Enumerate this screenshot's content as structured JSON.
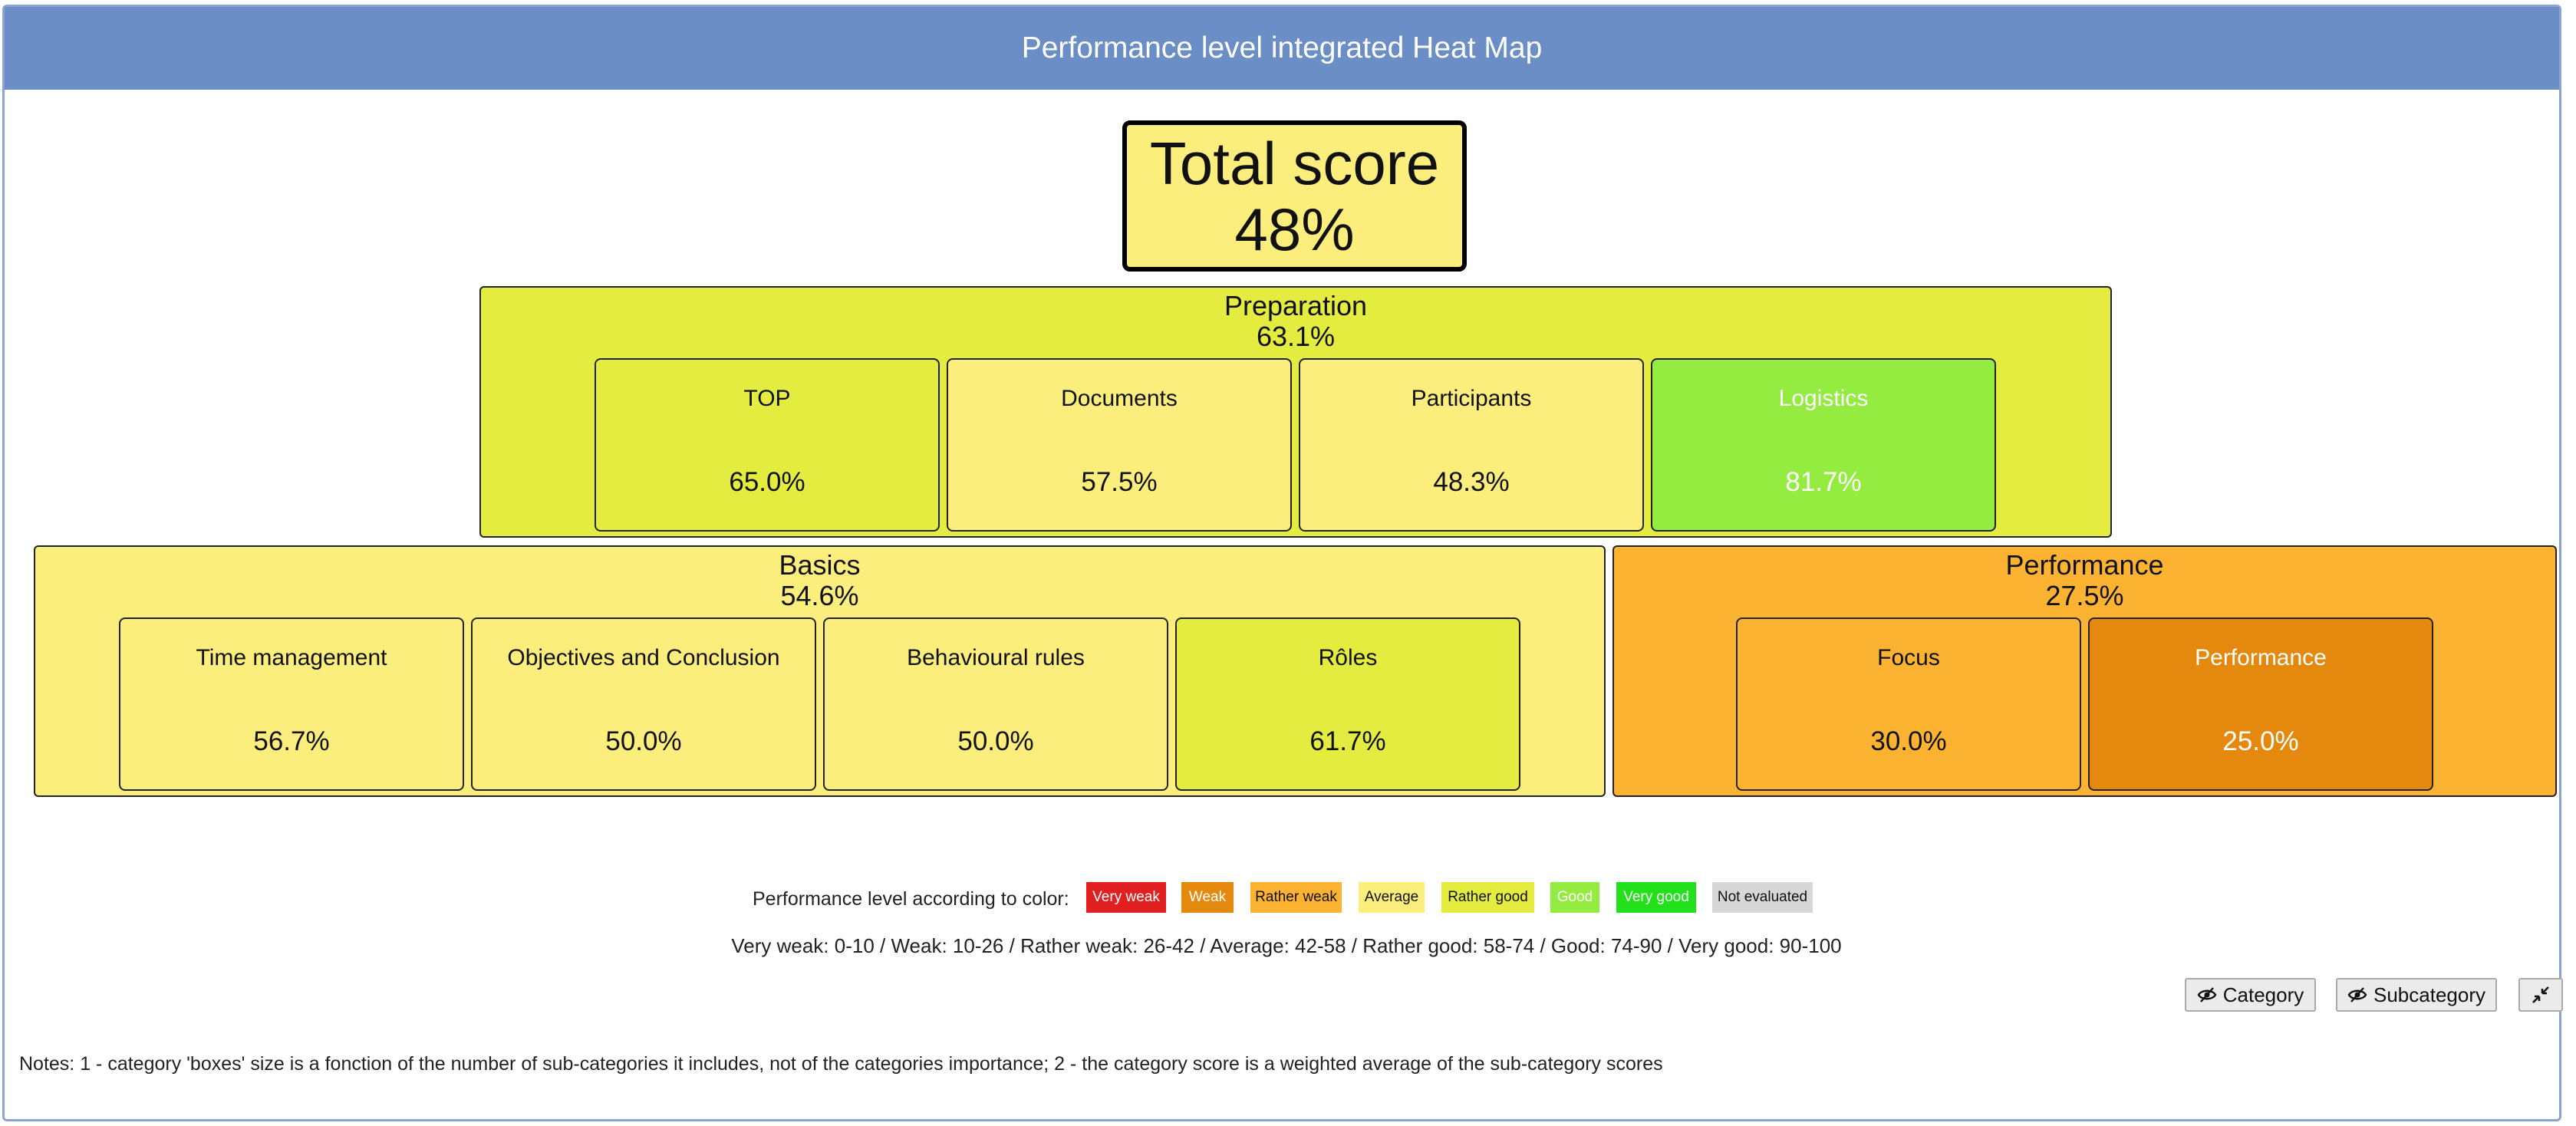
{
  "header": {
    "title": "Performance level integrated Heat Map"
  },
  "total": {
    "label": "Total score",
    "value": "48%"
  },
  "colors": {
    "very_weak": "#e02020",
    "weak": "#e5890e",
    "rather_weak": "#fcb331",
    "average": "#fcee7c",
    "rather_good": "#e4ec40",
    "good": "#93ec3f",
    "very_good": "#22e01a",
    "not_evaluated": "#d7d7d7",
    "header": "#6a8ec5"
  },
  "categories": {
    "preparation": {
      "name": "Preparation",
      "score": "63.1%",
      "subs": [
        {
          "name": "TOP",
          "score": "65.0%"
        },
        {
          "name": "Documents",
          "score": "57.5%"
        },
        {
          "name": "Participants",
          "score": "48.3%"
        },
        {
          "name": "Logistics",
          "score": "81.7%"
        }
      ]
    },
    "basics": {
      "name": "Basics",
      "score": "54.6%",
      "subs": [
        {
          "name": "Time management",
          "score": "56.7%"
        },
        {
          "name": "Objectives and Conclusion",
          "score": "50.0%"
        },
        {
          "name": "Behavioural rules",
          "score": "50.0%"
        },
        {
          "name": "Rôles",
          "score": "61.7%"
        }
      ]
    },
    "performance": {
      "name": "Performance",
      "score": "27.5%",
      "subs": [
        {
          "name": "Focus",
          "score": "30.0%"
        },
        {
          "name": "Performance",
          "score": "25.0%"
        }
      ]
    }
  },
  "legend": {
    "label": "Performance level according to color:",
    "items": [
      "Very weak",
      "Weak",
      "Rather weak",
      "Average",
      "Rather good",
      "Good",
      "Very good",
      "Not evaluated"
    ],
    "ranges": "Very weak: 0-10 / Weak: 10-26 / Rather weak: 26-42 / Average: 42-58 / Rather good: 58-74 / Good: 74-90 / Very good: 90-100"
  },
  "buttons": {
    "category": "Category",
    "subcategory": "Subcategory"
  },
  "notes": "Notes: 1 - category 'boxes' size is a fonction of the number of sub-categories it includes, not of the categories importance; 2 - the category score is a weighted average of the sub-category scores"
}
